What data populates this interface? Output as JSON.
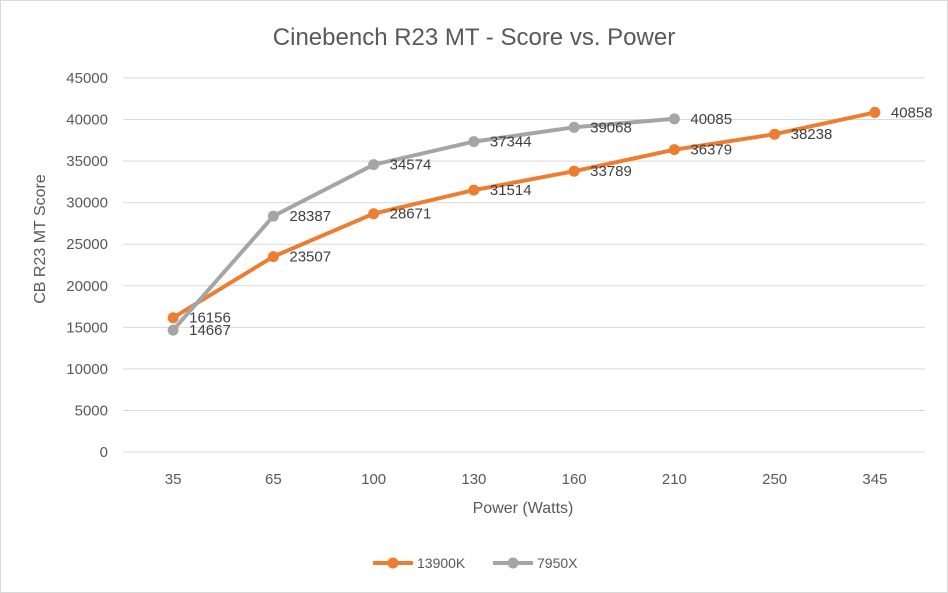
{
  "chart_data": {
    "type": "line",
    "title": "Cinebench R23 MT - Score vs. Power",
    "xlabel": "Power (Watts)",
    "ylabel": "CB R23 MT Score",
    "categories": [
      "35",
      "65",
      "100",
      "130",
      "160",
      "210",
      "250",
      "345"
    ],
    "ylim": [
      0,
      45000
    ],
    "yticks": [
      0,
      5000,
      10000,
      15000,
      20000,
      25000,
      30000,
      35000,
      40000,
      45000
    ],
    "grid": true,
    "legend_position": "bottom",
    "series": [
      {
        "name": "13900K",
        "color": "#ED7D31",
        "values": [
          16156,
          23507,
          28671,
          31514,
          33789,
          36379,
          38238,
          40858
        ]
      },
      {
        "name": "7950X",
        "color": "#A5A5A5",
        "values": [
          14667,
          28387,
          34574,
          37344,
          39068,
          40085,
          null,
          null
        ]
      }
    ]
  }
}
